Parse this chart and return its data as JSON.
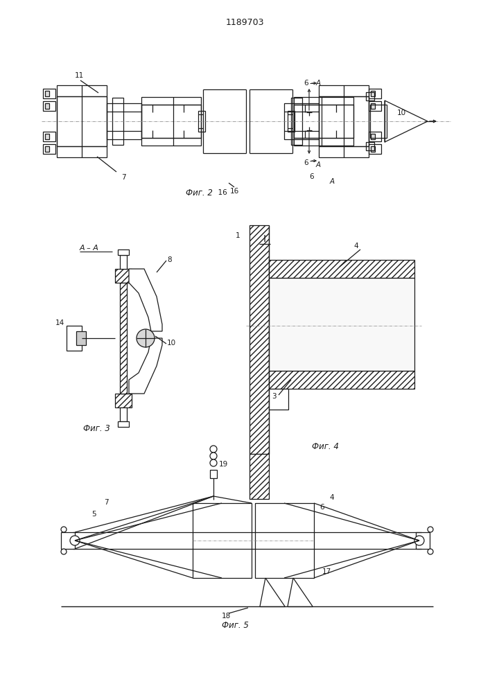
{
  "title": "1189703",
  "bg": "#ffffff",
  "lc": "#1a1a1a",
  "fig2_caption": "Фиг. 2",
  "fig3_caption": "Фиг. 3",
  "fig4_caption": "Фиг. 4",
  "fig5_caption": "Фиг. 5"
}
